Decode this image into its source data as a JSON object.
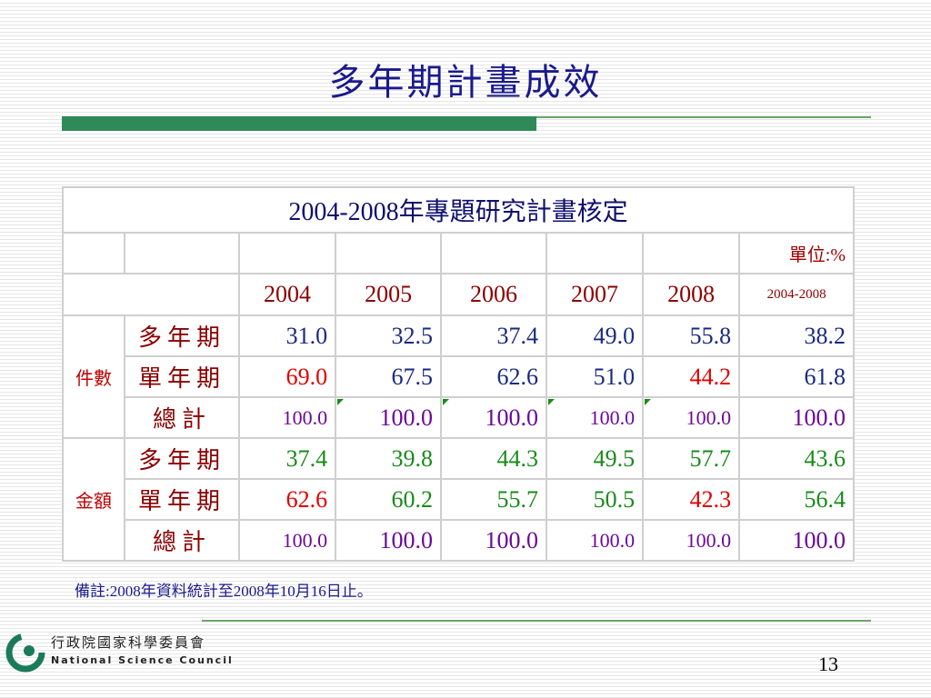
{
  "title": "多年期計畫成效",
  "table": {
    "caption": "2004-2008年專題研究計畫核定",
    "unit": "單位:%",
    "headers": [
      "2004",
      "2005",
      "2006",
      "2007",
      "2008",
      "2004-2008"
    ],
    "groups": [
      {
        "name": "件數",
        "rows": [
          {
            "label": "多年期",
            "values": [
              "31.0",
              "32.5",
              "37.4",
              "49.0",
              "55.8",
              "38.2"
            ]
          },
          {
            "label": "單年期",
            "values": [
              "69.0",
              "67.5",
              "62.6",
              "51.0",
              "44.2",
              "61.8"
            ]
          },
          {
            "label": "總計",
            "values": [
              "100.0",
              "100.0",
              "100.0",
              "100.0",
              "100.0",
              "100.0"
            ]
          }
        ]
      },
      {
        "name": "金額",
        "rows": [
          {
            "label": "多年期",
            "values": [
              "37.4",
              "39.8",
              "44.3",
              "49.5",
              "57.7",
              "43.6"
            ]
          },
          {
            "label": "單年期",
            "values": [
              "62.6",
              "60.2",
              "55.7",
              "50.5",
              "42.3",
              "56.4"
            ]
          },
          {
            "label": "總計",
            "values": [
              "100.0",
              "100.0",
              "100.0",
              "100.0",
              "100.0",
              "100.0"
            ]
          }
        ]
      }
    ]
  },
  "note": "備註:2008年資料統計至2008年10月16日止。",
  "footer": {
    "org_zh": "行政院國家科學委員會",
    "org_en": "National Science Council",
    "page": "13"
  }
}
